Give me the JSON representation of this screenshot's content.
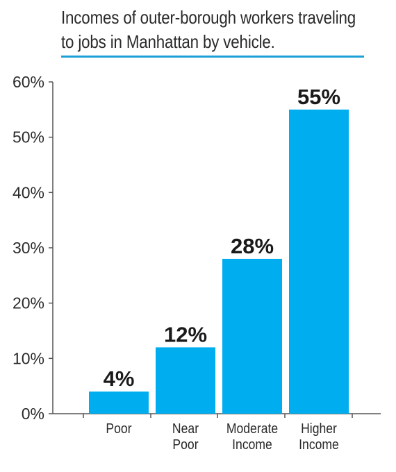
{
  "title_lines": [
    "Incomes of outer-borough workers traveling",
    "to jobs in Manhattan by vehicle."
  ],
  "colors": {
    "bar": "#00adef",
    "accent_rule": "#1ba1d6",
    "axis": "#555555",
    "text": "#2a2a2a"
  },
  "chart_data": {
    "type": "bar",
    "title": "Incomes of outer-borough workers traveling to jobs in Manhattan by vehicle.",
    "categories": [
      [
        "Poor"
      ],
      [
        "Near",
        "Poor"
      ],
      [
        "Moderate",
        "Income"
      ],
      [
        "Higher",
        "Income"
      ]
    ],
    "values": [
      4,
      12,
      28,
      55
    ],
    "value_labels": [
      "4%",
      "12%",
      "28%",
      "55%"
    ],
    "ylim": [
      0,
      60
    ],
    "yticks": [
      0,
      10,
      20,
      30,
      40,
      50,
      60
    ],
    "ytick_labels": [
      "0%",
      "10%",
      "20%",
      "30%",
      "40%",
      "50%",
      "60%"
    ],
    "xlabel": "",
    "ylabel": "",
    "grid": false,
    "legend": "none"
  }
}
